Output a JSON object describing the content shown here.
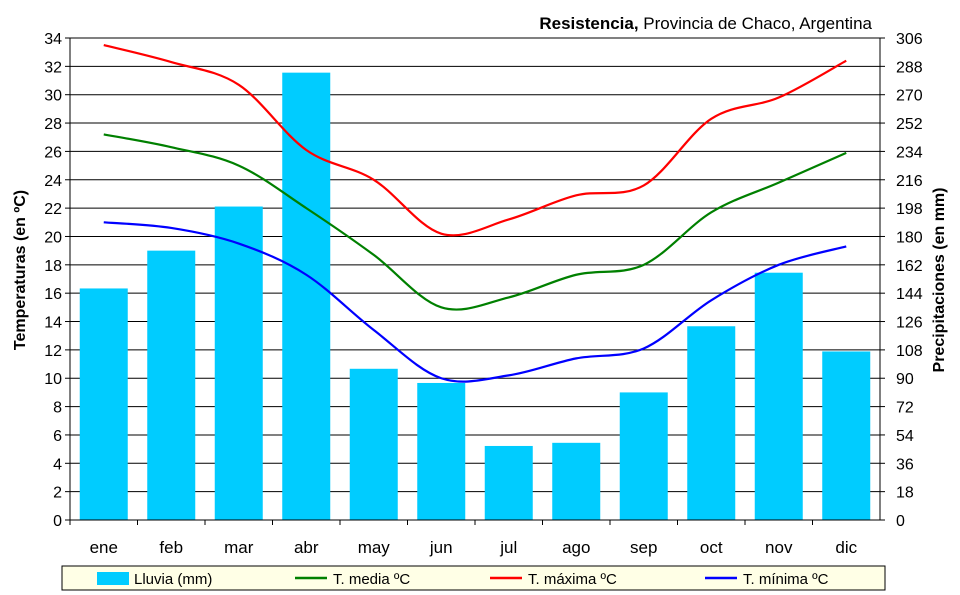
{
  "chart_data": {
    "type": "bar+line",
    "title_bold": "Resistencia,",
    "title_rest": " Provincia de Chaco, Argentina",
    "ylabel_left": "Temperaturas (en ºC)",
    "ylabel_right": "Precipitaciones (en mm)",
    "ylim_left": [
      0,
      34
    ],
    "ylim_right": [
      0,
      306
    ],
    "yticks_left": [
      "0",
      "2",
      "4",
      "6",
      "8",
      "10",
      "12",
      "14",
      "16",
      "18",
      "20",
      "22",
      "24",
      "26",
      "28",
      "30",
      "32",
      "34"
    ],
    "yticks_right": [
      "0",
      "18",
      "36",
      "54",
      "72",
      "90",
      "108",
      "126",
      "144",
      "162",
      "180",
      "198",
      "216",
      "234",
      "252",
      "270",
      "288",
      "306"
    ],
    "grid": true,
    "legend_placement": "bottom",
    "categories": [
      "ene",
      "feb",
      "mar",
      "abr",
      "may",
      "jun",
      "jul",
      "ago",
      "sep",
      "oct",
      "nov",
      "dic"
    ],
    "bars": {
      "name": "Lluvia (mm)",
      "color": "#00CCFF",
      "axis": "right",
      "values": [
        147,
        171,
        199,
        284,
        96,
        87,
        47,
        49,
        81,
        123,
        157,
        107
      ]
    },
    "series": [
      {
        "name": "T. media ºC",
        "color": "#008000",
        "values": [
          27.2,
          26.3,
          25.0,
          22.0,
          18.7,
          15.0,
          15.7,
          17.3,
          18.0,
          21.7,
          23.8,
          25.9
        ]
      },
      {
        "name": "T. máxima ºC",
        "color": "#FF0000",
        "values": [
          33.5,
          32.3,
          30.7,
          26.1,
          24.0,
          20.2,
          21.2,
          22.9,
          23.6,
          28.3,
          29.8,
          32.4
        ]
      },
      {
        "name": "T. mínima ºC",
        "color": "#0000FF",
        "values": [
          21.0,
          20.6,
          19.5,
          17.3,
          13.4,
          10.0,
          10.2,
          11.4,
          12.1,
          15.5,
          18.0,
          19.3
        ]
      }
    ]
  }
}
